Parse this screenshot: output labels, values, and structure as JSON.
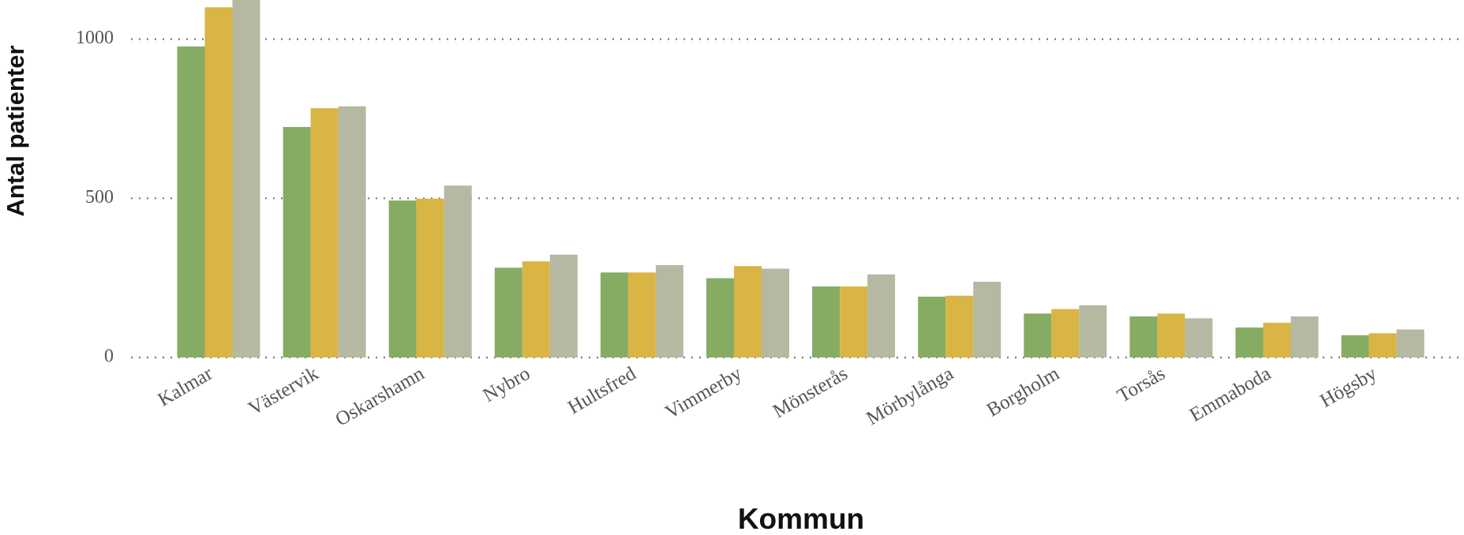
{
  "chart_data": {
    "type": "bar",
    "x_label": "Kommun",
    "y_label": "Antal patienter",
    "categories": [
      "Kalmar",
      "Västervik",
      "Oskarshamn",
      "Nybro",
      "Hultsfred",
      "Vimmerby",
      "Mönsterås",
      "Mörbylånga",
      "Borgholm",
      "Torsås",
      "Emmaboda",
      "Högsby"
    ],
    "series": [
      {
        "color": "#86ac63",
        "values": [
          977,
          724,
          493,
          282,
          267,
          249,
          223,
          191,
          138,
          129,
          94,
          70
        ]
      },
      {
        "color": "#d9b545",
        "values": [
          1100,
          783,
          499,
          302,
          267,
          287,
          223,
          194,
          152,
          138,
          109,
          76
        ]
      },
      {
        "color": "#b5b9a2",
        "values": [
          1130,
          789,
          540,
          323,
          290,
          279,
          261,
          238,
          164,
          123,
          129,
          88
        ]
      }
    ],
    "ylim": [
      0,
      1123
    ],
    "yticks": [
      0,
      500,
      1000
    ],
    "grid": true
  }
}
